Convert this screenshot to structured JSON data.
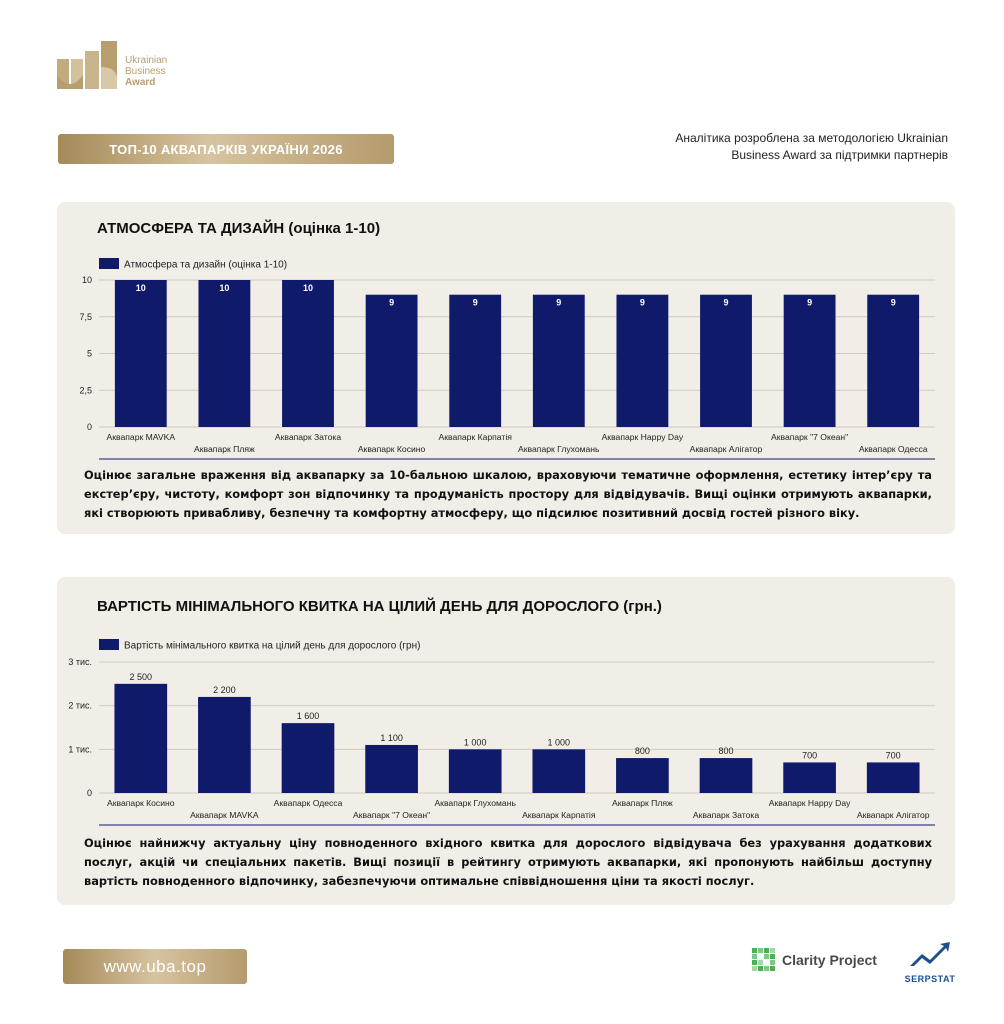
{
  "brand": {
    "logo_lines": [
      "Ukrainian",
      "Business",
      "Award"
    ],
    "gold": "#b79e6f"
  },
  "header": {
    "badge": "ТОП-10 АКВАПАРКІВ УКРАЇНИ 2026",
    "attribution_line1": "Аналітика розроблена за методологією Ukrainian",
    "attribution_line2": "Business Award за підтримки партнерів"
  },
  "sections": [
    {
      "title": "АТМОСФЕРА ТА ДИЗАЙН (оцінка 1-10)",
      "description": "Оцінює загальне враження від аквапарку за 10-бальною шкалою, враховуючи тематичне оформлення, естетику інтер’єру та екстер’єру, чистоту, комфорт зон відпочинку та продуманість простору для відвідувачів. Вищі оцінки отримують аквапарки, які створюють привабливу, безпечну та комфортну атмосферу, що підсилює позитивний досвід гостей різного віку."
    },
    {
      "title": "ВАРТІСТЬ МІНІМАЛЬНОГО КВИТКА НА ЦІЛИЙ ДЕНЬ ДЛЯ ДОРОСЛОГО (грн.)",
      "description": "Оцінює найнижчу актуальну ціну повноденного вхідного квитка для дорослого відвідувача без урахування додаткових послуг, акцій чи спеціальних пакетів. Вищі позиції в рейтингу отримують аквапарки, які пропонують найбільш доступну вартість повноденного відпочинку, забезпечуючи оптимальне співвідношення ціни та якості послуг."
    }
  ],
  "chart_data": [
    {
      "type": "bar",
      "title": "АТМОСФЕРА ТА ДИЗАЙН (оцінка 1-10)",
      "categories": [
        "Аквапарк MAVKA",
        "Аквапарк Пляж",
        "Аквапарк Затока",
        "Аквапарк Косино",
        "Аквапарк Карпатія",
        "Аквапарк Глухомань",
        "Аквапарк Happy Day",
        "Аквапарк Алігатор",
        "Аквапарк \"7 Океан\"",
        "Аквапарк Одесса"
      ],
      "series": [
        {
          "name": "Атмосфера та дизайн (оцінка 1-10)",
          "values": [
            10,
            10,
            10,
            9,
            9,
            9,
            9,
            9,
            9,
            9
          ]
        }
      ],
      "data_labels": [
        "10",
        "10",
        "10",
        "9",
        "9",
        "9",
        "9",
        "9",
        "9",
        "9"
      ],
      "yticks": [
        "0",
        "2,5",
        "5",
        "7,5",
        "10"
      ],
      "ytick_values": [
        0,
        2.5,
        5,
        7.5,
        10
      ],
      "ylim": [
        0,
        10
      ],
      "grid": true,
      "legend": "top-left",
      "bar_color": "#0f1a6b"
    },
    {
      "type": "bar",
      "title": "ВАРТІСТЬ МІНІМАЛЬНОГО КВИТКА НА ЦІЛИЙ ДЕНЬ ДЛЯ ДОРОСЛОГО (грн.)",
      "categories": [
        "Аквапарк Косино",
        "Аквапарк MAVKA",
        "Аквапарк Одесса",
        "Аквапарк \"7 Океан\"",
        "Аквапарк Глухомань",
        "Аквапарк Карпатія",
        "Аквапарк Пляж",
        "Аквапарк Затока",
        "Аквапарк Happy Day",
        "Аквапарк Алігатор"
      ],
      "series": [
        {
          "name": "Вартість мінімального квитка на цілий день для дорослого (грн)",
          "values": [
            2500,
            2200,
            1600,
            1100,
            1000,
            1000,
            800,
            800,
            700,
            700
          ]
        }
      ],
      "data_labels": [
        "2 500",
        "2 200",
        "1 600",
        "1 100",
        "1 000",
        "1 000",
        "800",
        "800",
        "700",
        "700"
      ],
      "yticks": [
        "0",
        "1 тис.",
        "2 тис.",
        "3 тис."
      ],
      "ytick_values": [
        0,
        1000,
        2000,
        3000
      ],
      "ylim": [
        0,
        3000
      ],
      "grid": true,
      "legend": "top-left",
      "bar_color": "#0f1a6b"
    }
  ],
  "footer": {
    "url": "www.uba.top",
    "partner1": "Clarity Project",
    "partner2": "SERPSTAT"
  }
}
